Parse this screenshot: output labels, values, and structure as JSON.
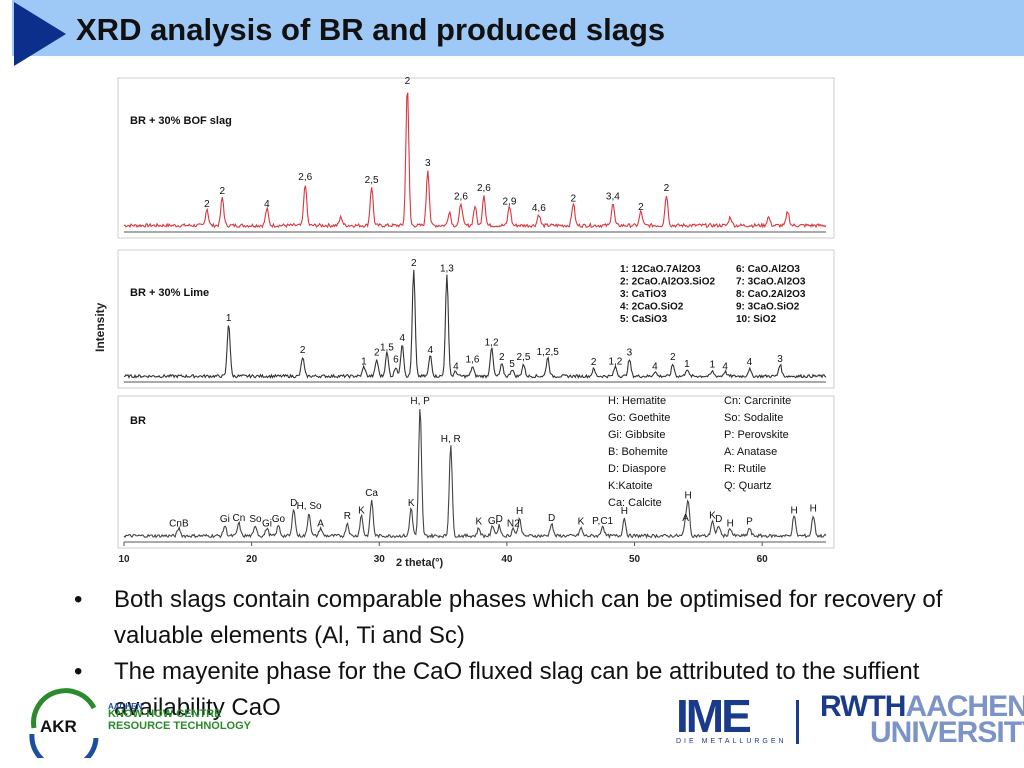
{
  "title": "XRD analysis of BR and produced slags",
  "colors": {
    "title_band": "#9ec8f5",
    "title_triangle": "#0d2f8c",
    "red_pattern": "#d9363e",
    "dark_pattern": "#333333",
    "brand_blue": "#1a3a8a",
    "brand_green": "#2b8a2b"
  },
  "chart_data": {
    "type": "line",
    "ylabel": "Intensity",
    "xlabel": "2 theta(°)",
    "xlim": [
      10,
      65
    ],
    "x_ticks": [
      "10",
      "20",
      "30",
      "40",
      "50",
      "60"
    ],
    "panels": [
      {
        "name": "BR + 30% BOF slag",
        "color": "#d9363e",
        "peaks": [
          {
            "x": 16.5,
            "h": 0.12,
            "label": "2"
          },
          {
            "x": 17.7,
            "h": 0.2,
            "label": "2"
          },
          {
            "x": 21.2,
            "h": 0.12,
            "label": "4"
          },
          {
            "x": 24.2,
            "h": 0.3,
            "label": "2,6"
          },
          {
            "x": 27.0,
            "h": 0.06,
            "label": ""
          },
          {
            "x": 29.4,
            "h": 0.28,
            "label": "2,5"
          },
          {
            "x": 32.2,
            "h": 1.0,
            "label": "2"
          },
          {
            "x": 33.8,
            "h": 0.4,
            "label": "3"
          },
          {
            "x": 35.5,
            "h": 0.1,
            "label": ""
          },
          {
            "x": 36.4,
            "h": 0.16,
            "label": "2,6"
          },
          {
            "x": 37.5,
            "h": 0.14,
            "label": ""
          },
          {
            "x": 38.2,
            "h": 0.22,
            "label": "2,6"
          },
          {
            "x": 40.2,
            "h": 0.14,
            "label": "2,9"
          },
          {
            "x": 42.5,
            "h": 0.08,
            "label": "4,6"
          },
          {
            "x": 45.2,
            "h": 0.16,
            "label": "2"
          },
          {
            "x": 48.3,
            "h": 0.16,
            "label": "3,4"
          },
          {
            "x": 50.5,
            "h": 0.1,
            "label": "2"
          },
          {
            "x": 52.5,
            "h": 0.22,
            "label": "2"
          },
          {
            "x": 57.5,
            "h": 0.06,
            "label": ""
          },
          {
            "x": 60.5,
            "h": 0.06,
            "label": ""
          },
          {
            "x": 62.0,
            "h": 0.1,
            "label": ""
          }
        ]
      },
      {
        "name": "BR + 30% Lime",
        "color": "#333333",
        "peaks": [
          {
            "x": 18.2,
            "h": 0.45,
            "label": "1"
          },
          {
            "x": 24.0,
            "h": 0.16,
            "label": "2"
          },
          {
            "x": 28.8,
            "h": 0.08,
            "label": "1"
          },
          {
            "x": 29.8,
            "h": 0.14,
            "label": "2"
          },
          {
            "x": 30.6,
            "h": 0.2,
            "label": "1,5"
          },
          {
            "x": 31.3,
            "h": 0.08,
            "label": "6"
          },
          {
            "x": 31.8,
            "h": 0.28,
            "label": "4"
          },
          {
            "x": 32.7,
            "h": 0.9,
            "label": "2"
          },
          {
            "x": 34.0,
            "h": 0.18,
            "label": "4"
          },
          {
            "x": 35.3,
            "h": 0.85,
            "label": "1,3"
          },
          {
            "x": 36.0,
            "h": 0.04,
            "label": "4"
          },
          {
            "x": 37.3,
            "h": 0.08,
            "label": "1,6"
          },
          {
            "x": 38.8,
            "h": 0.24,
            "label": "1,2"
          },
          {
            "x": 39.6,
            "h": 0.1,
            "label": "2"
          },
          {
            "x": 40.4,
            "h": 0.06,
            "label": "5"
          },
          {
            "x": 41.3,
            "h": 0.1,
            "label": "2,5"
          },
          {
            "x": 43.2,
            "h": 0.16,
            "label": "1,2,5"
          },
          {
            "x": 46.8,
            "h": 0.06,
            "label": "2"
          },
          {
            "x": 48.5,
            "h": 0.08,
            "label": "1,2"
          },
          {
            "x": 49.6,
            "h": 0.14,
            "label": "3"
          },
          {
            "x": 51.6,
            "h": 0.04,
            "label": "4"
          },
          {
            "x": 53.0,
            "h": 0.1,
            "label": "2"
          },
          {
            "x": 54.1,
            "h": 0.06,
            "label": "1"
          },
          {
            "x": 56.1,
            "h": 0.04,
            "label": "1"
          },
          {
            "x": 57.1,
            "h": 0.04,
            "label": "4"
          },
          {
            "x": 59.0,
            "h": 0.06,
            "label": "4"
          },
          {
            "x": 61.4,
            "h": 0.1,
            "label": "3"
          }
        ],
        "legend": [
          "1: 12CaO.7Al2O3",
          "2: 2CaO.Al2O3.SiO2",
          "3: CaTiO3",
          "4: 2CaO.SiO2",
          "5: CaSiO3",
          "6: CaO.Al2O3",
          "7: 3CaO.Al2O3",
          "8: CaO.2Al2O3",
          "9: 3CaO.SiO2",
          "10: SiO2"
        ]
      },
      {
        "name": "BR",
        "color": "#444444",
        "peaks": [
          {
            "x": 14.3,
            "h": 0.06,
            "label": "CnB"
          },
          {
            "x": 17.9,
            "h": 0.08,
            "label": "Gi"
          },
          {
            "x": 19.0,
            "h": 0.1,
            "label": "Cn"
          },
          {
            "x": 20.3,
            "h": 0.08,
            "label": "So"
          },
          {
            "x": 21.2,
            "h": 0.06,
            "label": "Gi"
          },
          {
            "x": 22.1,
            "h": 0.08,
            "label": "Go"
          },
          {
            "x": 23.3,
            "h": 0.22,
            "label": "D"
          },
          {
            "x": 24.5,
            "h": 0.18,
            "label": "H, So"
          },
          {
            "x": 25.4,
            "h": 0.06,
            "label": "A"
          },
          {
            "x": 27.5,
            "h": 0.1,
            "label": "R"
          },
          {
            "x": 28.6,
            "h": 0.16,
            "label": "K"
          },
          {
            "x": 29.4,
            "h": 0.28,
            "label": "Ca"
          },
          {
            "x": 32.5,
            "h": 0.22,
            "label": "K"
          },
          {
            "x": 33.2,
            "h": 1.0,
            "label": "H, P"
          },
          {
            "x": 35.6,
            "h": 0.72,
            "label": "H, R"
          },
          {
            "x": 37.8,
            "h": 0.06,
            "label": "K"
          },
          {
            "x": 38.9,
            "h": 0.08,
            "label": "Gi"
          },
          {
            "x": 39.4,
            "h": 0.08,
            "label": "D"
          },
          {
            "x": 40.5,
            "h": 0.06,
            "label": "N2"
          },
          {
            "x": 41.0,
            "h": 0.14,
            "label": "H"
          },
          {
            "x": 43.5,
            "h": 0.1,
            "label": "D"
          },
          {
            "x": 45.8,
            "h": 0.06,
            "label": "K"
          },
          {
            "x": 47.5,
            "h": 0.08,
            "label": "P,C1"
          },
          {
            "x": 49.2,
            "h": 0.14,
            "label": "H"
          },
          {
            "x": 54.0,
            "h": 0.1,
            "label": "A"
          },
          {
            "x": 54.2,
            "h": 0.26,
            "label": "H"
          },
          {
            "x": 56.1,
            "h": 0.12,
            "label": "K"
          },
          {
            "x": 56.6,
            "h": 0.08,
            "label": "D"
          },
          {
            "x": 57.5,
            "h": 0.06,
            "label": "H"
          },
          {
            "x": 59.0,
            "h": 0.06,
            "label": "P"
          },
          {
            "x": 62.5,
            "h": 0.16,
            "label": "H"
          },
          {
            "x": 64.0,
            "h": 0.16,
            "label": "H"
          }
        ],
        "legend": [
          "H: Hematite",
          "Go: Goethite",
          "Gi: Gibbsite",
          "B: Bohemite",
          "D: Diaspore",
          "K:Katoite",
          "Ca: Calcite",
          "Cn: Carcrinite",
          "So: Sodalite",
          "P: Perovskite",
          "A: Anatase",
          "R: Rutile",
          "Q: Quartz"
        ]
      }
    ]
  },
  "bullets": [
    "Both slags contain comparable phases which can be optimised for recovery of valuable elements (Al, Ti and Sc)",
    "The mayenite phase for the CaO fluxed slag can be attributed to the suffient availability CaO"
  ],
  "bullet_mark": "•",
  "logos": {
    "akr_letters": "AKR",
    "akr_top": "AACHEN",
    "akr_line1": "KNOW-HOW CENTRE",
    "akr_line2": "RESOURCE TECHNOLOGY",
    "ime": "IME",
    "ime_sub": "DIE METALLURGEN",
    "rwth_bold": "RWTH",
    "rwth_light1": "AACHEN",
    "rwth_light2": "UNIVERSITY"
  }
}
